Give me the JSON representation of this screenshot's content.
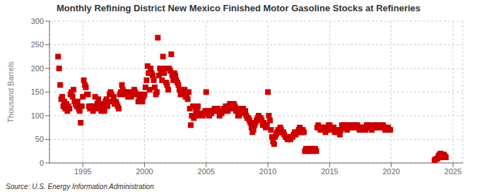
{
  "chart_data": {
    "type": "scatter",
    "title": "Monthly Refining District New Mexico Finished Motor Gasoline Stocks at Refineries",
    "ylabel": "Thousand Barrels",
    "annotations": [
      "Source: U.S. Energy Information Administration"
    ],
    "color": "#cc0000",
    "marker": "square",
    "grid": true,
    "xlim": [
      1992.3,
      2025.8
    ],
    "ylim": [
      0,
      300
    ],
    "xticks": [
      1995,
      2000,
      2005,
      2010,
      2015,
      2020,
      2025
    ],
    "yticks": [
      0,
      50,
      100,
      150,
      200,
      250,
      300
    ],
    "x": [
      1993.0,
      1993.08,
      1993.17,
      1993.25,
      1993.33,
      1993.42,
      1993.5,
      1993.58,
      1993.67,
      1993.75,
      1993.83,
      1993.92,
      1994.0,
      1994.08,
      1994.17,
      1994.25,
      1994.33,
      1994.42,
      1994.5,
      1994.58,
      1994.67,
      1994.75,
      1994.83,
      1994.92,
      1995.0,
      1995.08,
      1995.17,
      1995.25,
      1995.33,
      1995.42,
      1995.5,
      1995.58,
      1995.67,
      1995.75,
      1995.83,
      1995.92,
      1996.0,
      1996.08,
      1996.17,
      1996.25,
      1996.33,
      1996.42,
      1996.5,
      1996.58,
      1996.67,
      1996.75,
      1996.83,
      1996.92,
      1997.0,
      1997.08,
      1997.17,
      1997.25,
      1997.33,
      1997.42,
      1997.5,
      1997.58,
      1997.67,
      1997.75,
      1997.83,
      1997.92,
      1998.0,
      1998.08,
      1998.17,
      1998.25,
      1998.33,
      1998.42,
      1998.5,
      1998.58,
      1998.67,
      1998.75,
      1998.83,
      1998.92,
      1999.0,
      1999.08,
      1999.17,
      1999.25,
      1999.33,
      1999.42,
      1999.5,
      1999.58,
      1999.67,
      1999.75,
      1999.83,
      1999.92,
      2000.0,
      2000.08,
      2000.17,
      2000.25,
      2000.33,
      2000.42,
      2000.5,
      2000.58,
      2000.67,
      2000.75,
      2000.83,
      2000.92,
      2001.0,
      2001.08,
      2001.17,
      2001.25,
      2001.33,
      2001.42,
      2001.5,
      2001.58,
      2001.67,
      2001.75,
      2001.83,
      2001.92,
      2002.0,
      2002.08,
      2002.17,
      2002.25,
      2002.33,
      2002.42,
      2002.5,
      2002.58,
      2002.67,
      2002.75,
      2002.83,
      2002.92,
      2003.0,
      2003.08,
      2003.17,
      2003.25,
      2003.33,
      2003.42,
      2003.5,
      2003.58,
      2003.67,
      2003.75,
      2003.83,
      2003.92,
      2004.0,
      2004.08,
      2004.17,
      2004.25,
      2004.33,
      2004.42,
      2004.5,
      2004.58,
      2004.67,
      2004.75,
      2004.83,
      2004.92,
      2005.0,
      2005.08,
      2005.17,
      2005.25,
      2005.33,
      2005.42,
      2005.5,
      2005.58,
      2005.67,
      2005.75,
      2005.83,
      2005.92,
      2006.0,
      2006.08,
      2006.17,
      2006.25,
      2006.33,
      2006.42,
      2006.5,
      2006.58,
      2006.67,
      2006.75,
      2006.83,
      2006.92,
      2007.0,
      2007.08,
      2007.17,
      2007.25,
      2007.33,
      2007.42,
      2007.5,
      2007.58,
      2007.67,
      2007.75,
      2007.83,
      2007.92,
      2008.0,
      2008.08,
      2008.17,
      2008.25,
      2008.33,
      2008.42,
      2008.5,
      2008.58,
      2008.67,
      2008.75,
      2008.83,
      2008.92,
      2009.0,
      2009.08,
      2009.17,
      2009.25,
      2009.33,
      2009.42,
      2009.5,
      2009.58,
      2009.67,
      2009.75,
      2009.83,
      2009.92,
      2010.0,
      2010.08,
      2010.17,
      2010.25,
      2010.33,
      2010.42,
      2010.5,
      2010.58,
      2010.67,
      2010.75,
      2010.83,
      2010.92,
      2011.0,
      2011.08,
      2011.17,
      2011.25,
      2011.33,
      2011.42,
      2011.5,
      2011.58,
      2011.67,
      2011.75,
      2011.83,
      2011.92,
      2012.0,
      2012.08,
      2012.17,
      2012.25,
      2012.33,
      2012.42,
      2012.5,
      2012.58,
      2012.67,
      2012.75,
      2012.83,
      2012.92,
      2013.0,
      2013.08,
      2013.17,
      2013.25,
      2013.33,
      2013.42,
      2013.5,
      2013.58,
      2013.67,
      2013.75,
      2013.83,
      2013.92,
      2014.0,
      2014.08,
      2014.17,
      2014.25,
      2014.33,
      2014.42,
      2014.5,
      2014.58,
      2014.67,
      2014.75,
      2014.83,
      2014.92,
      2015.0,
      2015.08,
      2015.17,
      2015.25,
      2015.33,
      2015.42,
      2015.5,
      2015.58,
      2015.67,
      2015.75,
      2015.83,
      2015.92,
      2016.0,
      2016.08,
      2016.17,
      2016.25,
      2016.33,
      2016.42,
      2016.5,
      2016.58,
      2016.67,
      2016.75,
      2016.83,
      2016.92,
      2017.0,
      2017.08,
      2017.17,
      2017.25,
      2017.33,
      2017.42,
      2017.5,
      2017.58,
      2017.67,
      2017.75,
      2017.83,
      2017.92,
      2018.0,
      2018.08,
      2018.17,
      2018.25,
      2018.33,
      2018.42,
      2018.5,
      2018.58,
      2018.67,
      2018.75,
      2018.83,
      2018.92,
      2019.0,
      2019.08,
      2019.17,
      2019.25,
      2019.33,
      2019.42,
      2019.5,
      2019.58,
      2019.67,
      2019.75,
      2019.83,
      2019.92,
      2023.5,
      2023.58,
      2023.67,
      2023.75,
      2023.83,
      2023.92,
      2024.0,
      2024.08,
      2024.17,
      2024.25,
      2024.33,
      2024.42
    ],
    "values": [
      225,
      200,
      165,
      135,
      140,
      120,
      130,
      115,
      125,
      110,
      120,
      115,
      145,
      150,
      140,
      155,
      130,
      125,
      120,
      130,
      115,
      110,
      85,
      120,
      140,
      175,
      165,
      160,
      145,
      145,
      120,
      115,
      120,
      115,
      110,
      120,
      140,
      115,
      125,
      135,
      120,
      115,
      110,
      125,
      115,
      110,
      130,
      135,
      120,
      130,
      145,
      150,
      145,
      130,
      140,
      125,
      130,
      125,
      120,
      115,
      145,
      150,
      165,
      155,
      150,
      145,
      150,
      145,
      140,
      150,
      145,
      140,
      145,
      150,
      155,
      150,
      145,
      145,
      130,
      140,
      145,
      135,
      130,
      140,
      145,
      160,
      175,
      205,
      190,
      155,
      200,
      190,
      185,
      175,
      160,
      145,
      150,
      265,
      185,
      200,
      195,
      175,
      225,
      190,
      200,
      170,
      165,
      155,
      200,
      195,
      230,
      185,
      175,
      190,
      185,
      175,
      170,
      165,
      155,
      145,
      155,
      155,
      145,
      155,
      140,
      140,
      135,
      150,
      115,
      80,
      100,
      120,
      95,
      100,
      110,
      110,
      120,
      105,
      100,
      100,
      100,
      100,
      105,
      110,
      150,
      110,
      105,
      100,
      110,
      105,
      110,
      110,
      115,
      115,
      110,
      115,
      110,
      100,
      110,
      105,
      110,
      115,
      110,
      120,
      115,
      110,
      120,
      125,
      125,
      115,
      115,
      125,
      120,
      110,
      115,
      100,
      100,
      110,
      115,
      110,
      115,
      105,
      110,
      100,
      95,
      95,
      90,
      85,
      75,
      65,
      70,
      80,
      85,
      90,
      95,
      100,
      95,
      95,
      90,
      80,
      85,
      80,
      75,
      80,
      150,
      100,
      90,
      70,
      55,
      45,
      40,
      55,
      60,
      65,
      70,
      65,
      75,
      70,
      65,
      65,
      60,
      55,
      55,
      50,
      55,
      55,
      50,
      55,
      55,
      60,
      65,
      60,
      65,
      65,
      70,
      75,
      70,
      65,
      70,
      65,
      25,
      30,
      30,
      25,
      30,
      30,
      25,
      30,
      30,
      30,
      30,
      25,
      75,
      80,
      75,
      70,
      75,
      70,
      75,
      75,
      65,
      70,
      75,
      80,
      80,
      75,
      70,
      75,
      75,
      65,
      70,
      70,
      65,
      70,
      60,
      70,
      80,
      75,
      80,
      80,
      75,
      70,
      75,
      80,
      75,
      80,
      75,
      80,
      75,
      80,
      75,
      80,
      75,
      70,
      75,
      75,
      70,
      75,
      75,
      70,
      80,
      80,
      75,
      80,
      75,
      70,
      75,
      75,
      80,
      80,
      75,
      75,
      75,
      75,
      80,
      75,
      80,
      75,
      70,
      75,
      70,
      75,
      70,
      70,
      5,
      8,
      8,
      10,
      15,
      18,
      20,
      15,
      12,
      18,
      15,
      12
    ]
  }
}
